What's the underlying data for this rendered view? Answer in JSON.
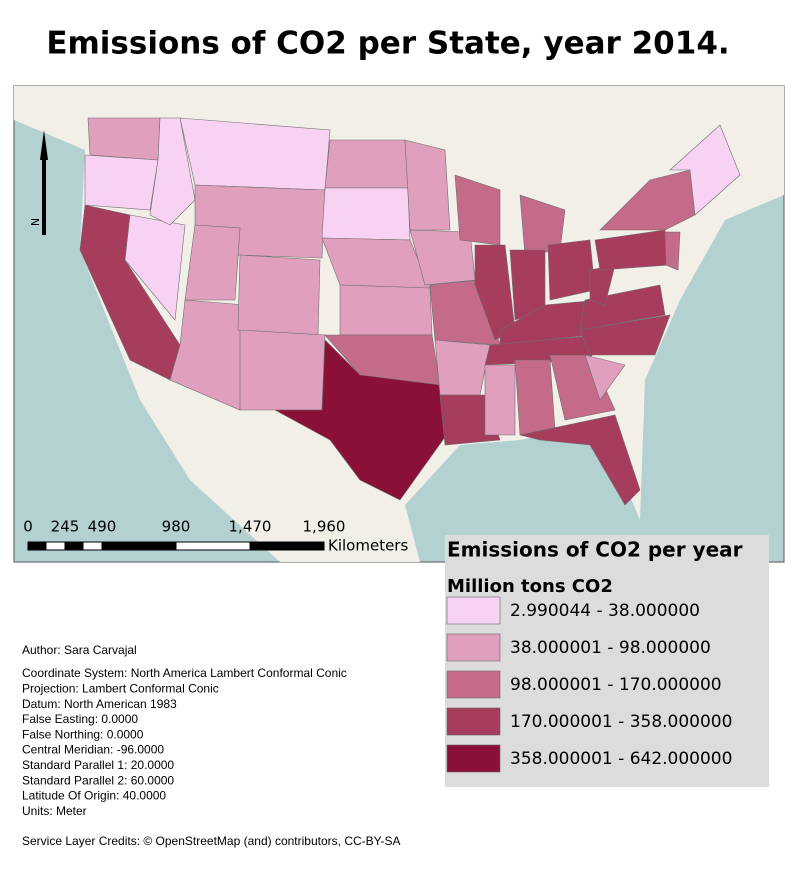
{
  "title": "Emissions of CO2 per State, year 2014.",
  "north_arrow": "N",
  "scale_bar": {
    "labels": [
      "0",
      "245",
      "490",
      "980",
      "1,470",
      "1,960"
    ],
    "unit": "Kilometers"
  },
  "legend": {
    "title": "Emissions of CO2 per year",
    "subtitle": "Million tons CO2",
    "classes": [
      {
        "label": "2.990044 - 38.000000",
        "color": "#f8d2f2"
      },
      {
        "label": "38.000001 - 98.000000",
        "color": "#e09fbd"
      },
      {
        "label": "98.000001 - 170.000000",
        "color": "#c46b8a"
      },
      {
        "label": "170.000001 - 358.000000",
        "color": "#a63d5c"
      },
      {
        "label": "358.000001 - 642.000000",
        "color": "#8b1038"
      }
    ]
  },
  "metadata": {
    "author": "Author: Sara Carvajal",
    "lines": [
      "Coordinate System: North America Lambert Conformal Conic",
      "Projection: Lambert Conformal Conic",
      "Datum: North American 1983",
      "False Easting: 0.0000",
      "False Northing: 0.0000",
      "Central Meridian: -96.0000",
      "Standard Parallel 1: 20.0000",
      "Standard Parallel 2: 60.0000",
      "Latitude Of Origin: 40.0000",
      "Units: Meter"
    ]
  },
  "credits": "Service Layer Credits: © OpenStreetMap (and) contributors, CC-BY-SA"
}
